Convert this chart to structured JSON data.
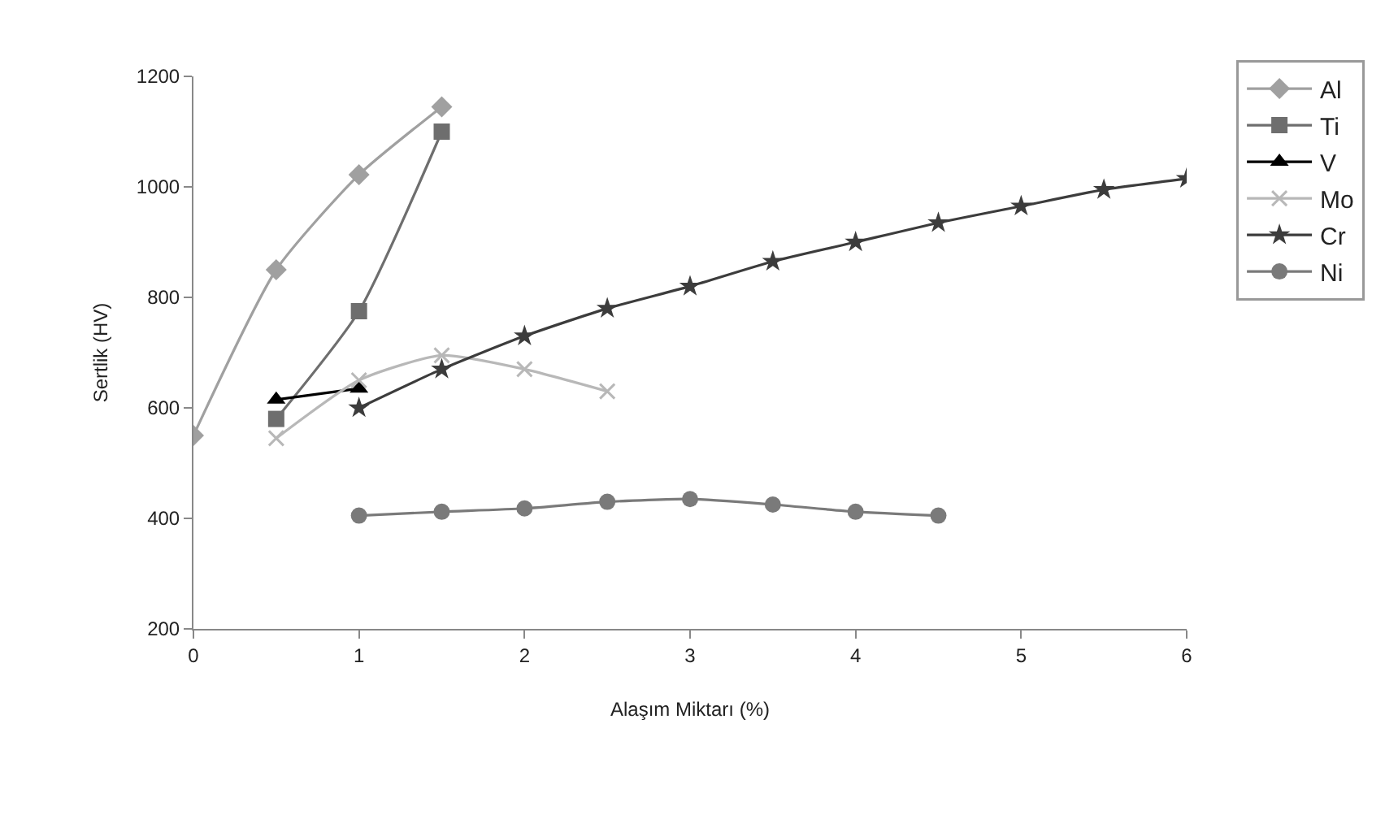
{
  "chart_data": {
    "type": "line",
    "xlabel": "Alaşım Miktarı (%)",
    "ylabel": "Sertlik (HV)",
    "xlim": [
      0,
      6
    ],
    "xticks": [
      0,
      1,
      2,
      3,
      4,
      5,
      6
    ],
    "ylim": [
      200,
      1200
    ],
    "yticks": [
      200,
      400,
      600,
      800,
      1000,
      1200
    ],
    "legend": "right",
    "series": [
      {
        "name": "Al",
        "color": "#a0a0a0",
        "marker": "diamond",
        "x": [
          0,
          0.5,
          1,
          1.5
        ],
        "values": [
          550,
          850,
          1022,
          1145
        ]
      },
      {
        "name": "Ti",
        "color": "#6e6e6e",
        "marker": "square",
        "x": [
          0.5,
          1,
          1.5
        ],
        "values": [
          580,
          775,
          1100
        ]
      },
      {
        "name": "V",
        "color": "#000000",
        "marker": "triangle",
        "x": [
          0.5,
          1
        ],
        "values": [
          615,
          635
        ]
      },
      {
        "name": "Mo",
        "color": "#b8b8b8",
        "marker": "cross",
        "x": [
          0.5,
          1,
          1.5,
          2,
          2.5
        ],
        "values": [
          545,
          650,
          695,
          670,
          630
        ]
      },
      {
        "name": "Cr",
        "color": "#3c3c3c",
        "marker": "star",
        "x": [
          1,
          1.5,
          2,
          2.5,
          3,
          3.5,
          4,
          4.5,
          5,
          5.5,
          6
        ],
        "values": [
          600,
          670,
          730,
          780,
          820,
          865,
          900,
          935,
          965,
          995,
          1015
        ]
      },
      {
        "name": "Ni",
        "color": "#7a7a7a",
        "marker": "circle",
        "x": [
          1,
          1.5,
          2,
          2.5,
          3,
          3.5,
          4,
          4.5
        ],
        "values": [
          405,
          412,
          418,
          430,
          435,
          425,
          412,
          405
        ]
      }
    ]
  }
}
